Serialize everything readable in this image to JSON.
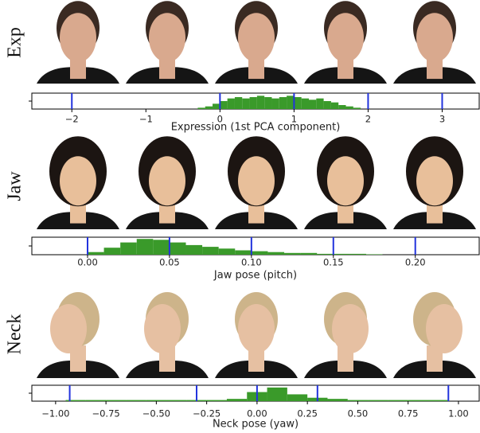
{
  "chart_data": [
    {
      "type": "histogram",
      "row_label": "Exp",
      "xlabel": "Expression (1st PCA component)",
      "bins": [
        -0.3,
        -0.2,
        -0.1,
        0.0,
        0.1,
        0.2,
        0.3,
        0.4,
        0.5,
        0.6,
        0.7,
        0.8,
        0.9,
        1.0,
        1.1,
        1.2,
        1.3,
        1.4,
        1.5,
        1.6,
        1.7,
        1.8,
        1.9
      ],
      "values": [
        1,
        2,
        4,
        6,
        8,
        9,
        8,
        9,
        10,
        9,
        8,
        9,
        10,
        9,
        8,
        7,
        8,
        6,
        5,
        3,
        2,
        1
      ],
      "color": "#3a9a2a",
      "ylim": [
        0,
        12
      ],
      "xlim": [
        -2.54,
        3.5
      ],
      "xticks": [
        {
          "value": -2,
          "label": "−2"
        },
        {
          "value": -1,
          "label": "−1"
        },
        0,
        1,
        2,
        3
      ],
      "markers": [
        -2,
        0,
        1,
        2,
        3
      ],
      "marker_color": "#2233dd"
    },
    {
      "type": "histogram",
      "row_label": "Jaw",
      "xlabel": "Jaw pose (pitch)",
      "bins": [
        0.0,
        0.01,
        0.02,
        0.03,
        0.04,
        0.05,
        0.06,
        0.07,
        0.08,
        0.09,
        0.1,
        0.11,
        0.12,
        0.13,
        0.14,
        0.15,
        0.16,
        0.17,
        0.18
      ],
      "values": [
        3,
        8,
        14,
        18,
        17,
        14,
        11,
        9,
        7,
        5,
        4,
        3,
        2,
        2,
        1,
        1,
        1,
        0.5
      ],
      "color": "#3a9a2a",
      "ylim": [
        0,
        20
      ],
      "xlim": [
        -0.034,
        0.239
      ],
      "xticks": [
        {
          "value": 0,
          "label": "0.00"
        },
        0.05,
        {
          "value": 0.1,
          "label": "0.10"
        },
        0.15,
        {
          "value": 0.2,
          "label": "0.20"
        }
      ],
      "markers": [
        0.0,
        0.05,
        0.1,
        0.15,
        0.2
      ],
      "marker_color": "#2233dd"
    },
    {
      "type": "histogram",
      "row_label": "Neck",
      "xlabel": "Neck pose (yaw)",
      "bins": [
        -0.95,
        -0.85,
        -0.75,
        -0.65,
        -0.55,
        -0.45,
        -0.35,
        -0.25,
        -0.15,
        -0.05,
        0.05,
        0.15,
        0.25,
        0.35,
        0.45,
        0.55,
        0.65,
        0.75,
        0.85,
        0.95
      ],
      "values": [
        1,
        1,
        1,
        1,
        1,
        1,
        1,
        1,
        2,
        8,
        12,
        6,
        3,
        2,
        1,
        1,
        1,
        1,
        1
      ],
      "color": "#3a9a2a",
      "ylim": [
        0,
        14
      ],
      "xlim": [
        -1.118,
        1.103
      ],
      "xticks": [
        {
          "value": -1,
          "label": "−1.00"
        },
        {
          "value": -0.75,
          "label": "−0.75"
        },
        {
          "value": -0.5,
          "label": "−0.50"
        },
        {
          "value": -0.25,
          "label": "−0.25"
        },
        {
          "value": 0,
          "label": "0.00"
        },
        0.25,
        {
          "value": 0.5,
          "label": "0.50"
        },
        0.75,
        {
          "value": 1,
          "label": "1.00"
        }
      ],
      "markers": [
        -0.93,
        -0.3,
        0.0,
        0.3,
        0.95
      ],
      "marker_color": "#2233dd"
    }
  ]
}
